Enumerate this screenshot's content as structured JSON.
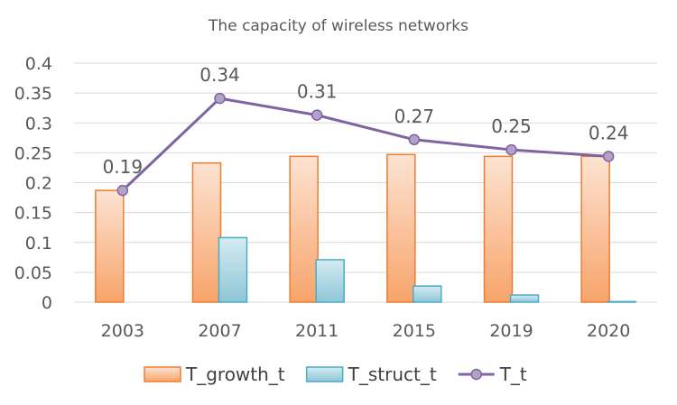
{
  "chart_data": {
    "type": "bar",
    "title": "The capacity of wireless networks",
    "categories": [
      "2003",
      "2007",
      "2011",
      "2015",
      "2019",
      "2020"
    ],
    "series": [
      {
        "name": "T_growth_t",
        "kind": "bar",
        "values": [
          0.187,
          0.233,
          0.244,
          0.247,
          0.244,
          0.244
        ],
        "fill_top": "#FDE3D2",
        "fill_bottom": "#F7A46B",
        "stroke": "#ED7D31"
      },
      {
        "name": "T_struct_t",
        "kind": "bar",
        "values": [
          0.0,
          0.108,
          0.071,
          0.027,
          0.012,
          0.001
        ],
        "fill_top": "#D4EBF2",
        "fill_bottom": "#8FC6D6",
        "stroke": "#4BACC6"
      },
      {
        "name": "T_t",
        "kind": "line",
        "values": [
          0.187,
          0.341,
          0.313,
          0.272,
          0.255,
          0.244
        ],
        "data_labels": [
          "0.19",
          "0.34",
          "0.31",
          "0.27",
          "0.25",
          "0.24"
        ],
        "line_color": "#8064A2",
        "marker_fill": "#B3A2C7"
      }
    ],
    "ylim": [
      0,
      0.4
    ],
    "yticks": [
      "0",
      "0.05",
      "0.1",
      "0.15",
      "0.2",
      "0.25",
      "0.3",
      "0.35",
      "0.4"
    ],
    "grid": true,
    "legend": "bottom"
  }
}
